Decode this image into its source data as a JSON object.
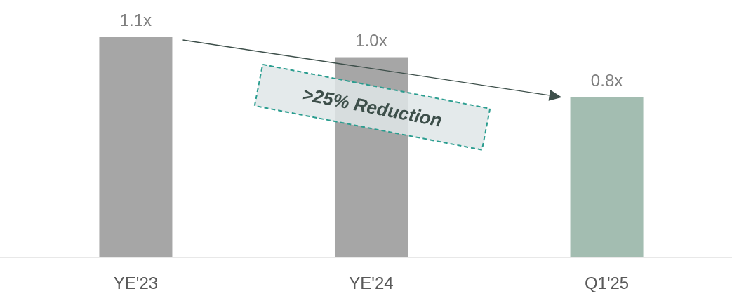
{
  "chart_data": {
    "type": "bar",
    "categories": [
      "YE'23",
      "YE'24",
      "Q1'25"
    ],
    "values": [
      1.1,
      1.0,
      0.8
    ],
    "colors": [
      "#a6a6a6",
      "#a6a6a6",
      "#a3bdb1"
    ],
    "value_labels": [
      "1.1x",
      "1.0x",
      "0.8x"
    ],
    "annotations": [
      ">25% Reduction"
    ]
  }
}
